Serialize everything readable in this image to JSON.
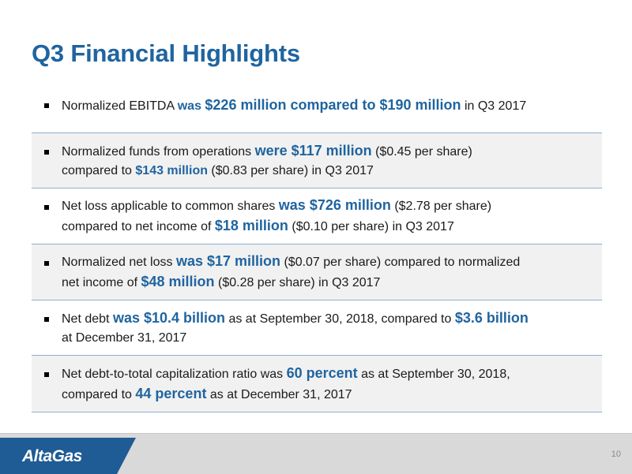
{
  "slide": {
    "title": "Q3 Financial Highlights",
    "page_number": "10"
  },
  "bullets": [
    {
      "t0": "Normalized EBITDA ",
      "h0": "was ",
      "h0b": "$226 million compared to $190 million",
      "t1": " in Q3 2017"
    },
    {
      "t0": "Normalized funds from operations ",
      "h0": "were $117 million",
      "t1": " ($0.45 per share)",
      "t2": "compared to ",
      "h1": "$143 million",
      "t3": " ($0.83 per share) in Q3 2017"
    },
    {
      "t0": "Net loss applicable to common shares ",
      "h0": "was $726 million",
      "t1": " ($2.78 per share)",
      "t2": "compared to net income of ",
      "h1": "$18 million",
      "t3": " ($0.10 per share) in Q3 2017"
    },
    {
      "t0": "Normalized net loss ",
      "h0": "was $17 million",
      "t1": " ($0.07 per share) compared to normalized",
      "t2": "net income of ",
      "h1": "$48 million",
      "t3": " ($0.28 per share) in Q3 2017"
    },
    {
      "t0": "Net debt ",
      "h0": "was $10.4 billion",
      "t1": " as at September 30, 2018, compared to ",
      "h1": "$3.6 billion",
      "t2": "at December 31, 2017"
    },
    {
      "t0": "Net debt-to-total capitalization ratio was ",
      "h0": "60 percent",
      "t1": " as at September 30, 2018,",
      "t2": "compared to ",
      "h1": "44 percent",
      "t3": " as at December 31, 2017"
    }
  ],
  "footer": {
    "logo_text": "AltaGas"
  },
  "colors": {
    "accent": "#1f64a0",
    "logo_panel": "#1f5b94",
    "row_shade": "#f1f1f1",
    "divider": "#8eaed0",
    "footer_bar": "#d9d9d9"
  }
}
